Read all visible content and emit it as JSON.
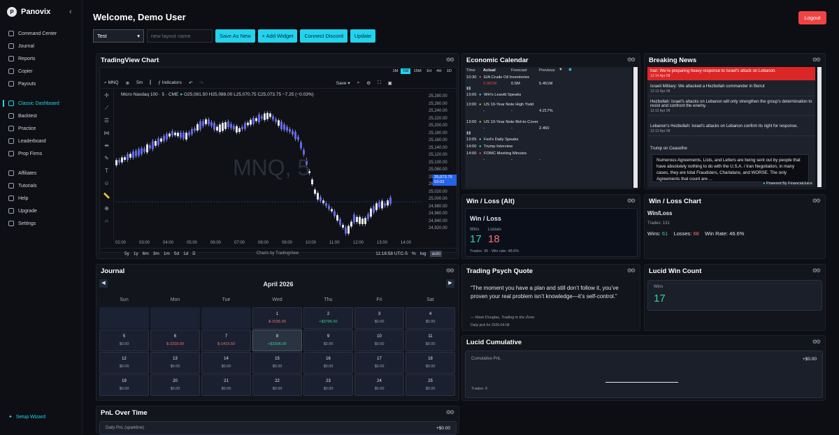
{
  "app": {
    "brand": "Panovix",
    "logo_letter": "P"
  },
  "sidebar": {
    "items": [
      {
        "label": "Command Center",
        "icon": "shield-icon"
      },
      {
        "label": "Journal",
        "icon": "book-icon"
      },
      {
        "label": "Reports",
        "icon": "chart-icon"
      },
      {
        "label": "Copier",
        "icon": "copy-icon"
      },
      {
        "label": "Payouts",
        "icon": "payout-icon"
      },
      {
        "label": "Classic Dashboard",
        "icon": "grid-icon"
      },
      {
        "label": "Backtest",
        "icon": "history-icon"
      },
      {
        "label": "Practice",
        "icon": "play-icon"
      },
      {
        "label": "Leaderboard",
        "icon": "trophy-icon"
      },
      {
        "label": "Prop Firms",
        "icon": "building-icon"
      },
      {
        "label": "Affiliates",
        "icon": "users-icon"
      },
      {
        "label": "Tutorials",
        "icon": "video-icon"
      },
      {
        "label": "Help",
        "icon": "help-icon"
      },
      {
        "label": "Upgrade",
        "icon": "upgrade-icon"
      },
      {
        "label": "Settings",
        "icon": "gear-icon"
      }
    ],
    "setup": "Setup Wizard"
  },
  "header": {
    "welcome": "Welcome, Demo User",
    "logout": "Logout"
  },
  "toolbar": {
    "layout_select": "Test",
    "layout_placeholder": "new layout name",
    "save_as_new": "Save As New",
    "add_widget": "+ Add Widget",
    "connect_discord": "Connect Discord",
    "update": "Update"
  },
  "tv": {
    "title": "TradingView Chart",
    "symbol": "MNQ",
    "interval": "5m",
    "indicators": "Indicators",
    "save": "Save",
    "save_sub": "Save",
    "tf": [
      "1M",
      "5M",
      "15M",
      "1H",
      "4H",
      "1D"
    ],
    "legend": "Micro Nasdaq 100 · 5 · CME",
    "ohlc": "O25,081.50 H25,088.00 L25,070.75 C25,073.75 −7.25 (−0.03%)",
    "watermark": "MNQ, 5",
    "price_labels": [
      "25,280.00",
      "25,260.00",
      "25,240.00",
      "25,220.00",
      "25,200.00",
      "25,180.00",
      "25,160.00",
      "25,140.00",
      "25,120.00",
      "25,100.00",
      "25,080.00",
      "25,060.00",
      "25,040.00",
      "25,020.00",
      "25,000.00",
      "24,980.00",
      "24,960.00",
      "24,940.00",
      "24,920.00"
    ],
    "current_price": "25,073.75",
    "current_time": "03:02",
    "time_labels": [
      "02:00",
      "03:00",
      "04:00",
      "05:00",
      "06:00",
      "07:00",
      "08:00",
      "09:00",
      "10:00",
      "11:00",
      "12:00",
      "13:00",
      "14:00"
    ],
    "ranges": [
      "5y",
      "1y",
      "6m",
      "3m",
      "1m",
      "5d",
      "1d"
    ],
    "clock": "11:16:58 UTC-5",
    "pct": "%",
    "log": "log",
    "auto": "auto",
    "credit": "Charts by TradingView"
  },
  "econ": {
    "title": "Economic Calendar",
    "headers": [
      "Time",
      "Actual",
      "Forecast",
      "Previous"
    ],
    "rows": [
      {
        "time": "10:30",
        "name": "EIA Crude Oil Inventories",
        "actual": "3.081M",
        "forecast": "0.5M",
        "previous": "5.451M",
        "dot": "#ef4444"
      },
      {
        "time": "13:00",
        "name": "WH's Leavitt Speaks",
        "actual": "",
        "forecast": "",
        "previous": "",
        "dot": "#22d3ee"
      },
      {
        "time": "13:00",
        "name": "US 10-Year Note High Yield",
        "actual": "-",
        "forecast": "-",
        "previous": "4.217%",
        "dot": "#f59e0b"
      },
      {
        "time": "13:00",
        "name": "US 10-Year Note Bid-to-Cover",
        "actual": "-",
        "forecast": "-",
        "previous": "2.450",
        "dot": "#f59e0b"
      },
      {
        "time": "13:05",
        "name": "Fed's Daily Speaks",
        "actual": "",
        "forecast": "",
        "previous": "",
        "dot": "#22d3ee"
      },
      {
        "time": "14:00",
        "name": "Trump Interview",
        "actual": "",
        "forecast": "",
        "previous": "",
        "dot": "#22d3ee"
      },
      {
        "time": "14:00",
        "name": "FOMC Meeting Minutes",
        "actual": "-",
        "forecast": "-",
        "previous": "-",
        "dot": "#ef4444"
      }
    ]
  },
  "news": {
    "title": "Breaking News",
    "items": [
      {
        "text": "Iran: We're preparing heavy response to Israel's attack on Lebanon.",
        "time": "12:14 Apr 08"
      },
      {
        "text": "Israeli Military: We attacked a Hezbollah commander in Beirut",
        "time": "12:12 Apr 08"
      },
      {
        "text": "Hezbollah: Israel's attacks on Lebanon will only strengthen the group's determination to resist and confront the enemy.",
        "time": "12:12 Apr 08"
      },
      {
        "text": "Lebanon's Hezbollah: Israel's attacks on Lebanon confirm its right for response.",
        "time": "12:12 Apr 08"
      },
      {
        "text": "Trump on Ceasefire",
        "time": ""
      }
    ],
    "detail": "Numerous Agreements, Lists, and Letters are being sent out by people that have absolutely nothing to do with the U.S.A. / Iran Negotiation, in many cases, they are total Fraudsters, Charlatans, and WORSE. The only Agreements that count are ...",
    "powered": "Powered By FinancialJuice"
  },
  "winloss_alt": {
    "title": "Win / Loss (Alt)",
    "heading": "Win / Loss",
    "wins_label": "Wins",
    "losses_label": "Losses",
    "wins": "17",
    "losses": "18",
    "footer": "Trades: 35 · Win rate: 48.6%"
  },
  "winloss_chart": {
    "title": "Win / Loss Chart",
    "sub": "Win/Loss",
    "trades": "Trades: 131",
    "wins_label": "Wins:",
    "wins": "61",
    "losses_label": "Losses:",
    "losses": "68",
    "winrate": "Win Rate: 46.6%"
  },
  "journal": {
    "title": "Journal",
    "month": "April 2026",
    "days": [
      "Sun",
      "Mon",
      "Tue",
      "Wed",
      "Thu",
      "Fri",
      "Sat"
    ],
    "cells": [
      {
        "d": "",
        "v": ""
      },
      {
        "d": "",
        "v": ""
      },
      {
        "d": "",
        "v": ""
      },
      {
        "d": "1",
        "v": "$-1536.00"
      },
      {
        "d": "2",
        "v": "+$3796.50"
      },
      {
        "d": "3",
        "v": "$0.00"
      },
      {
        "d": "4",
        "v": "$0.00"
      },
      {
        "d": "5",
        "v": "$0.00"
      },
      {
        "d": "6",
        "v": "$-2218.00"
      },
      {
        "d": "7",
        "v": "$-1419.50"
      },
      {
        "d": "8",
        "v": "+$1506.00"
      },
      {
        "d": "9",
        "v": "$0.00"
      },
      {
        "d": "10",
        "v": "$0.00"
      },
      {
        "d": "11",
        "v": "$0.00"
      },
      {
        "d": "12",
        "v": "$0.00"
      },
      {
        "d": "13",
        "v": "$0.00"
      },
      {
        "d": "14",
        "v": "$0.00"
      },
      {
        "d": "15",
        "v": "$0.00"
      },
      {
        "d": "16",
        "v": "$0.00"
      },
      {
        "d": "17",
        "v": "$0.00"
      },
      {
        "d": "18",
        "v": "$0.00"
      },
      {
        "d": "19",
        "v": "$0.00"
      },
      {
        "d": "20",
        "v": "$0.00"
      },
      {
        "d": "21",
        "v": "$0.00"
      },
      {
        "d": "22",
        "v": "$0.00"
      },
      {
        "d": "23",
        "v": "$0.00"
      },
      {
        "d": "24",
        "v": "$0.00"
      },
      {
        "d": "25",
        "v": "$0.00"
      }
    ]
  },
  "psych": {
    "title": "Trading Psych Quote",
    "quote": "“The moment you have a plan and still don’t follow it, you’ve proven your real problem isn’t knowledge—it’s self-control.”",
    "author": "— Mark Douglas,",
    "book": "Trading in the Zone",
    "daily": "Daily pick for 2026-04-08"
  },
  "lucid_win": {
    "title": "Lucid Win Count",
    "label": "Wins",
    "value": "17"
  },
  "lucid_cum": {
    "title": "Lucid Cumulative",
    "label": "Cumulative PnL",
    "value": "+$0.00",
    "trades": "Trades: 0"
  },
  "pnl": {
    "title": "PnL Over Time",
    "label": "Daily PnL (sparkline)",
    "value": "+$0.00"
  },
  "colors": {
    "accent": "#22d3ee",
    "positive": "#34d399",
    "negative": "#f87171",
    "danger": "#ef4444"
  }
}
